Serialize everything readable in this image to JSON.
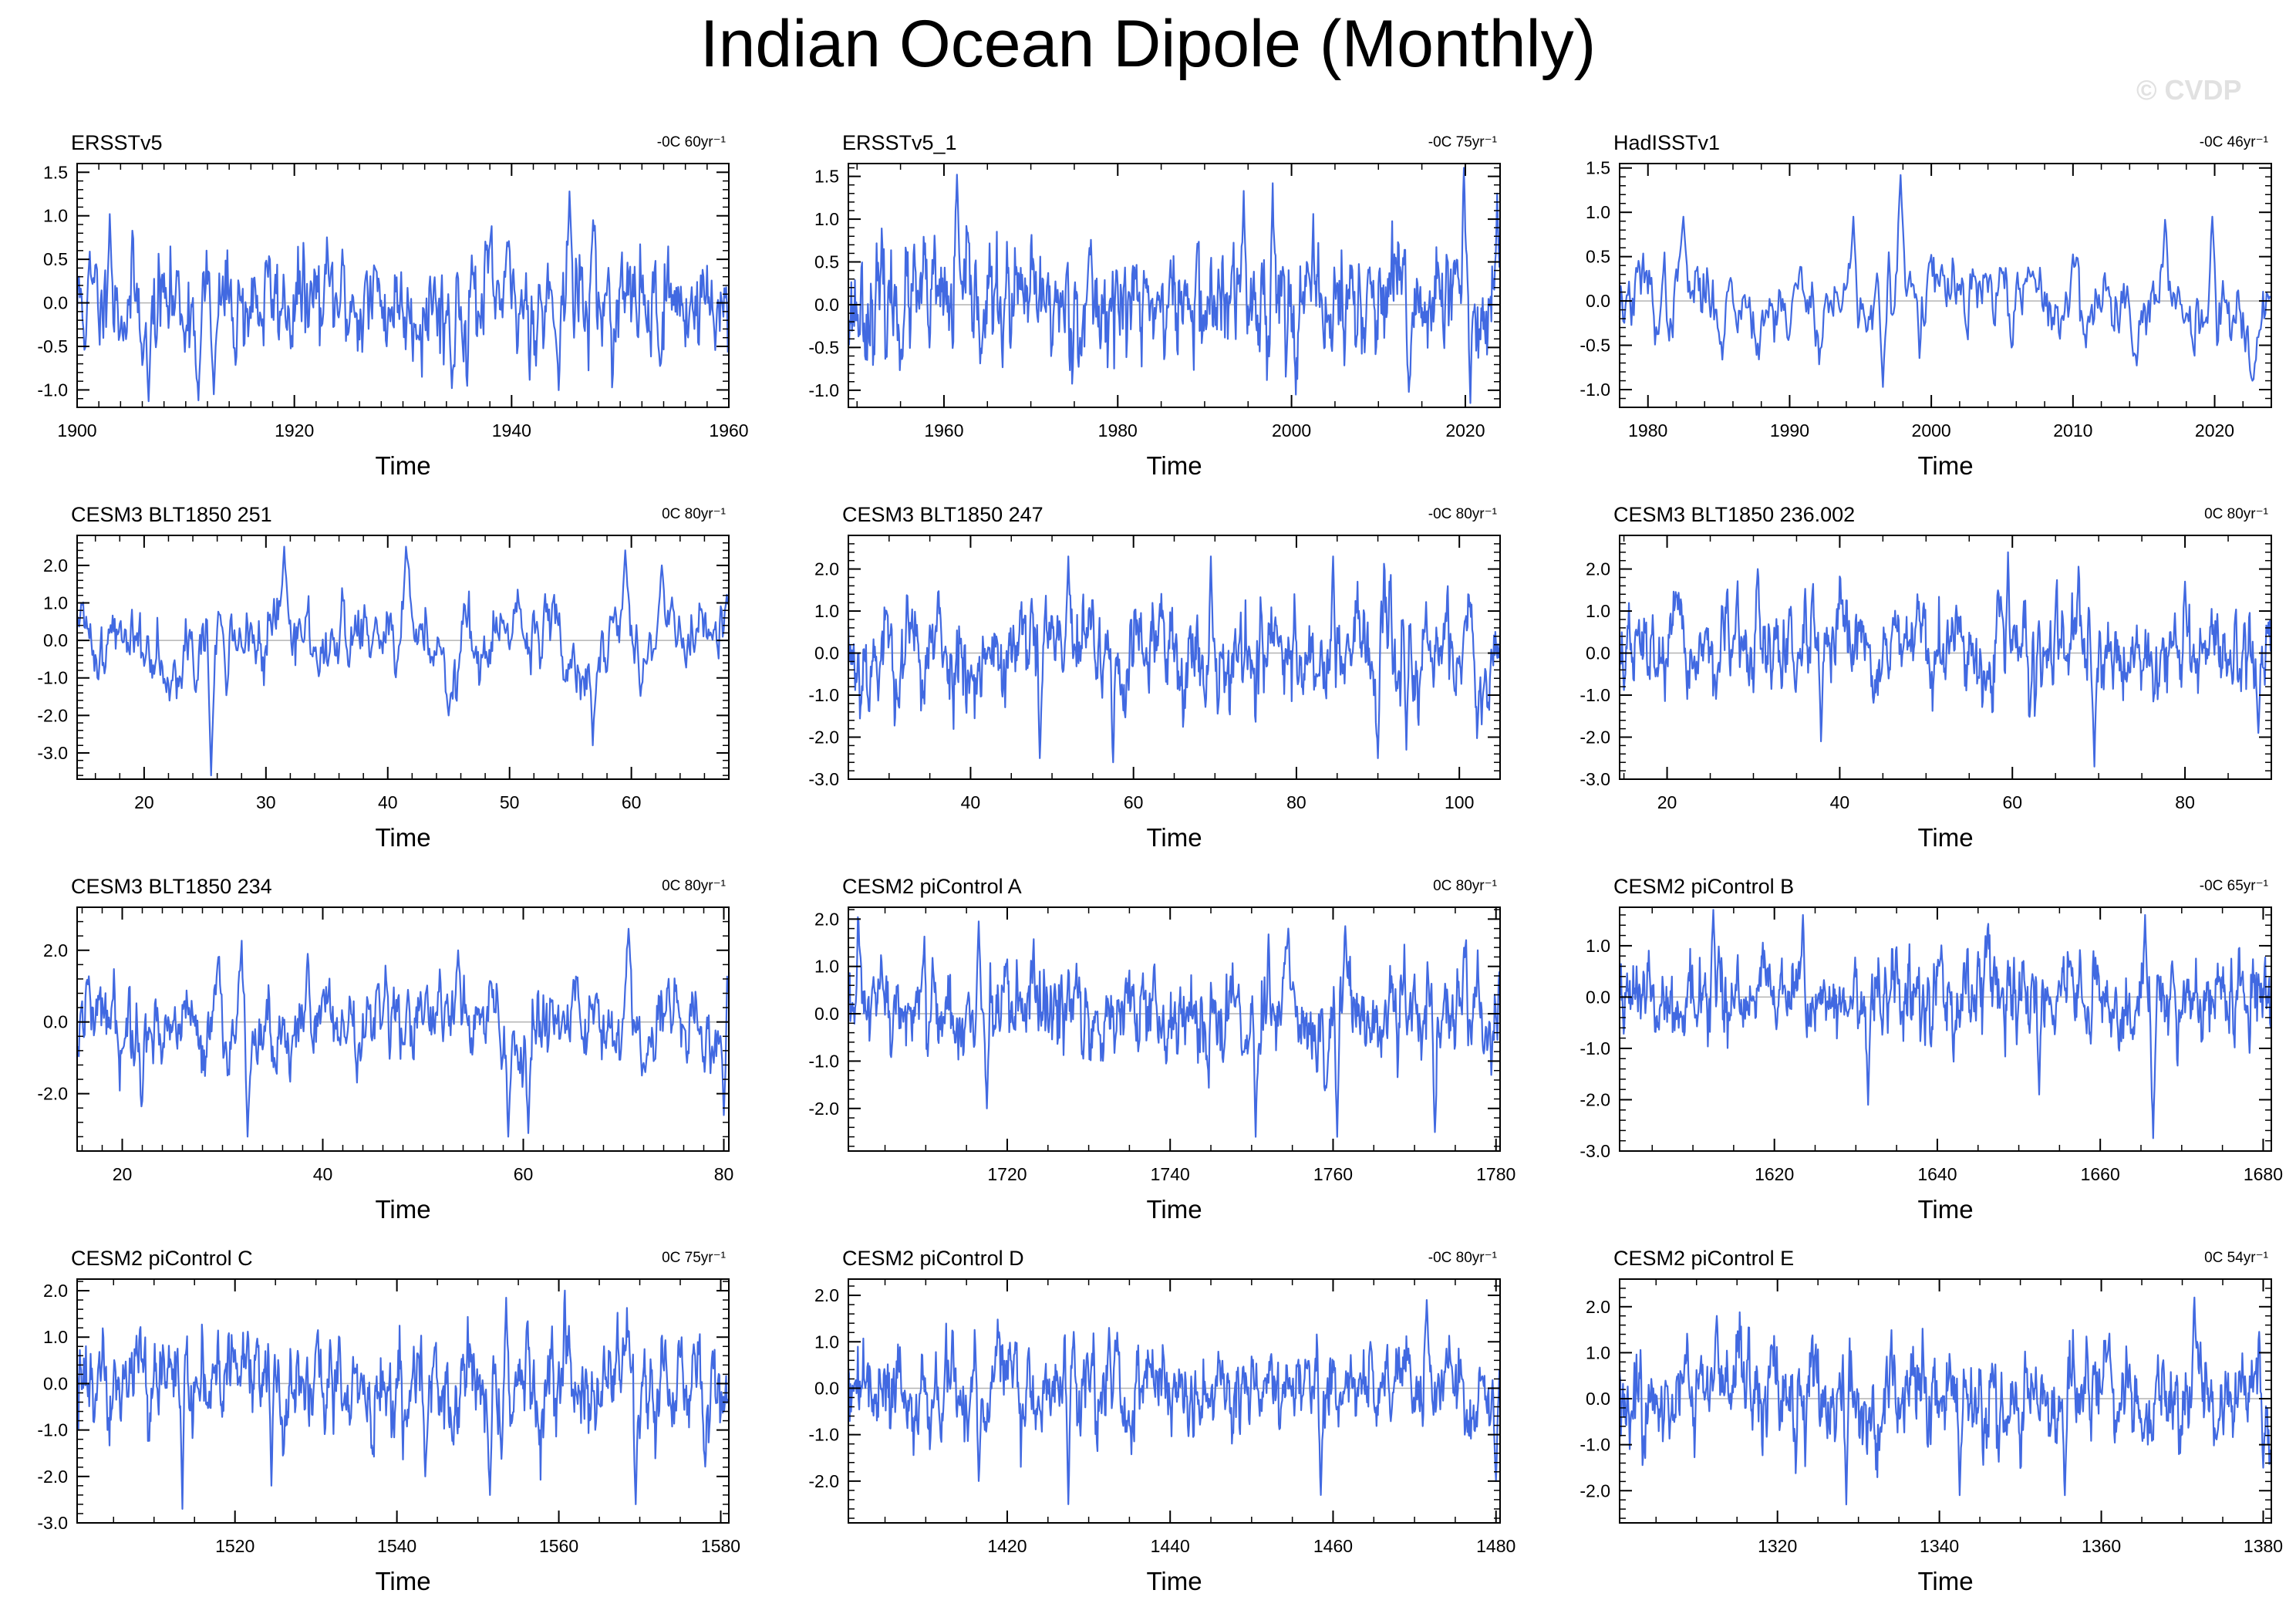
{
  "title": "Indian Ocean Dipole (Monthly)",
  "watermark": "© CVDP",
  "colors": {
    "line": "#4169e1",
    "zero": "#b4b4b4",
    "axis": "#000000"
  },
  "chart_data": [
    {
      "type": "line",
      "title": "ERSSTv5",
      "units": "-0C 60yr⁻¹",
      "xlabel": "Time",
      "xlim": [
        1900,
        1960
      ],
      "ylim": [
        -1.2,
        1.6
      ],
      "xticks": [
        1900,
        1920,
        1940,
        1960
      ],
      "yticks": [
        -1.0,
        -0.5,
        0.0,
        0.5,
        1.0,
        1.5
      ],
      "ydec": 1,
      "series_stats": {
        "amp": 0.33,
        "persistence": 0.6,
        "seed": 11
      },
      "extremes": [
        [
          1906.6,
          -1.13
        ],
        [
          1911.2,
          -1.12
        ],
        [
          1912.6,
          -1.05
        ],
        [
          1945.3,
          1.28
        ],
        [
          1934.5,
          -0.98
        ],
        [
          1903.0,
          1.02
        ],
        [
          1947.5,
          0.95
        ]
      ]
    },
    {
      "type": "line",
      "title": "ERSSTv5_1",
      "units": "-0C 75yr⁻¹",
      "xlabel": "Time",
      "xlim": [
        1949,
        2024
      ],
      "ylim": [
        -1.2,
        1.65
      ],
      "xticks": [
        1960,
        1980,
        2000,
        2020
      ],
      "yticks": [
        -1.0,
        -0.5,
        0.0,
        0.5,
        1.0,
        1.5
      ],
      "ydec": 1,
      "series_stats": {
        "amp": 0.34,
        "persistence": 0.6,
        "seed": 23
      },
      "extremes": [
        [
          1961.5,
          1.52
        ],
        [
          1994.5,
          1.33
        ],
        [
          1997.8,
          1.42
        ],
        [
          2019.8,
          1.6
        ],
        [
          2020.6,
          -1.15
        ],
        [
          2013.5,
          -1.02
        ],
        [
          2023.7,
          1.3
        ]
      ]
    },
    {
      "type": "line",
      "title": "HadISSTv1",
      "units": "-0C 46yr⁻¹",
      "xlabel": "Time",
      "xlim": [
        1978,
        2024
      ],
      "ylim": [
        -1.2,
        1.55
      ],
      "xticks": [
        1980,
        1990,
        2000,
        2010,
        2020
      ],
      "yticks": [
        -1.0,
        -0.5,
        0.0,
        0.5,
        1.0,
        1.5
      ],
      "ydec": 1,
      "series_stats": {
        "amp": 0.28,
        "persistence": 0.8,
        "seed": 37
      },
      "extremes": [
        [
          1997.8,
          1.42
        ],
        [
          1996.6,
          -0.97
        ],
        [
          1994.5,
          0.95
        ],
        [
          1982.5,
          0.95
        ],
        [
          2019.8,
          0.95
        ],
        [
          2022.7,
          -0.9
        ]
      ]
    },
    {
      "type": "line",
      "title": "CESM3 BLT1850 251",
      "units": "0C 80yr⁻¹",
      "xlabel": "Time",
      "xlim": [
        14.5,
        68
      ],
      "ylim": [
        -3.7,
        2.8
      ],
      "xticks": [
        20,
        30,
        40,
        50,
        60
      ],
      "yticks": [
        -3.0,
        -2.0,
        -1.0,
        0.0,
        1.0,
        2.0
      ],
      "ydec": 1,
      "series_stats": {
        "amp": 0.6,
        "persistence": 0.75,
        "seed": 41
      },
      "extremes": [
        [
          25.5,
          -3.6
        ],
        [
          31.5,
          2.5
        ],
        [
          41.5,
          2.5
        ],
        [
          56.8,
          -2.8
        ],
        [
          59.5,
          2.4
        ],
        [
          45.0,
          -2.0
        ],
        [
          62.5,
          2.0
        ]
      ]
    },
    {
      "type": "line",
      "title": "CESM3 BLT1850 247",
      "units": "-0C 80yr⁻¹",
      "xlabel": "Time",
      "xlim": [
        25,
        105
      ],
      "ylim": [
        -3.0,
        2.8
      ],
      "xticks": [
        40,
        60,
        80,
        100
      ],
      "yticks": [
        -3.0,
        -2.0,
        -1.0,
        0.0,
        1.0,
        2.0
      ],
      "ydec": 1,
      "series_stats": {
        "amp": 0.7,
        "persistence": 0.75,
        "seed": 53
      },
      "extremes": [
        [
          48.5,
          -2.5
        ],
        [
          57.5,
          -2.6
        ],
        [
          52.0,
          2.3
        ],
        [
          69.5,
          2.3
        ],
        [
          84.5,
          2.3
        ],
        [
          90.0,
          -2.5
        ],
        [
          93.5,
          -2.3
        ]
      ]
    },
    {
      "type": "line",
      "title": "CESM3 BLT1850 236.002",
      "units": "0C 80yr⁻¹",
      "xlabel": "Time",
      "xlim": [
        14.5,
        90
      ],
      "ylim": [
        -3.0,
        2.8
      ],
      "xticks": [
        20,
        40,
        60,
        80
      ],
      "yticks": [
        -3.0,
        -2.0,
        -1.0,
        0.0,
        1.0,
        2.0
      ],
      "ydec": 1,
      "series_stats": {
        "amp": 0.55,
        "persistence": 0.7,
        "seed": 67
      },
      "extremes": [
        [
          69.5,
          -2.7
        ],
        [
          59.5,
          2.4
        ],
        [
          37.8,
          -2.1
        ],
        [
          88.5,
          -1.9
        ],
        [
          30.5,
          2.0
        ],
        [
          80.0,
          1.7
        ]
      ]
    },
    {
      "type": "line",
      "title": "CESM3 BLT1850 234",
      "units": "0C 80yr⁻¹",
      "xlabel": "Time",
      "xlim": [
        15.5,
        80.5
      ],
      "ylim": [
        -3.6,
        3.2
      ],
      "xticks": [
        20,
        40,
        60,
        80
      ],
      "yticks": [
        -2.0,
        0.0,
        2.0
      ],
      "ydec": 1,
      "series_stats": {
        "amp": 0.7,
        "persistence": 0.75,
        "seed": 79
      },
      "extremes": [
        [
          32.5,
          -3.2
        ],
        [
          58.5,
          -3.2
        ],
        [
          60.5,
          -3.1
        ],
        [
          70.5,
          2.6
        ],
        [
          80.0,
          -2.6
        ],
        [
          53.5,
          2.0
        ],
        [
          38.5,
          1.9
        ]
      ]
    },
    {
      "type": "line",
      "title": "CESM2 piControl A",
      "units": "0C 80yr⁻¹",
      "xlabel": "Time",
      "xlim": [
        1700.5,
        1780.5
      ],
      "ylim": [
        -2.9,
        2.25
      ],
      "xticks": [
        1720,
        1740,
        1760,
        1780
      ],
      "yticks": [
        -2.0,
        -1.0,
        0.0,
        1.0,
        2.0
      ],
      "ydec": 1,
      "series_stats": {
        "amp": 0.55,
        "persistence": 0.7,
        "seed": 97
      },
      "extremes": [
        [
          1717.5,
          -2.0
        ],
        [
          1750.5,
          -2.6
        ],
        [
          1760.5,
          -2.6
        ],
        [
          1772.5,
          -2.5
        ],
        [
          1716.5,
          1.95
        ],
        [
          1754.5,
          1.8
        ],
        [
          1761.5,
          1.85
        ]
      ]
    },
    {
      "type": "line",
      "title": "CESM2 piControl B",
      "units": "-0C 65yr⁻¹",
      "xlabel": "Time",
      "xlim": [
        1601,
        1681
      ],
      "ylim": [
        -3.0,
        1.75
      ],
      "xticks": [
        1620,
        1640,
        1660,
        1680
      ],
      "yticks": [
        -3.0,
        -2.0,
        -1.0,
        0.0,
        1.0
      ],
      "ydec": 1,
      "series_stats": {
        "amp": 0.42,
        "persistence": 0.65,
        "seed": 109
      },
      "extremes": [
        [
          1666.5,
          -2.75
        ],
        [
          1665.5,
          1.6
        ],
        [
          1612.5,
          1.7
        ],
        [
          1631.5,
          -2.1
        ],
        [
          1652.5,
          -1.9
        ],
        [
          1623.5,
          1.6
        ]
      ]
    },
    {
      "type": "line",
      "title": "CESM2 piControl C",
      "units": "0C 75yr⁻¹",
      "xlabel": "Time",
      "xlim": [
        1500.5,
        1581
      ],
      "ylim": [
        -3.0,
        2.25
      ],
      "xticks": [
        1520,
        1540,
        1560,
        1580
      ],
      "yticks": [
        -3.0,
        -2.0,
        -1.0,
        0.0,
        1.0,
        2.0
      ],
      "ydec": 1,
      "series_stats": {
        "amp": 0.55,
        "persistence": 0.7,
        "seed": 127
      },
      "extremes": [
        [
          1513.5,
          -2.7
        ],
        [
          1551.5,
          -2.4
        ],
        [
          1569.5,
          -2.6
        ],
        [
          1553.5,
          1.85
        ],
        [
          1524.5,
          -2.2
        ],
        [
          1543.5,
          -2.0
        ]
      ]
    },
    {
      "type": "line",
      "title": "CESM2 piControl D",
      "units": "-0C 80yr⁻¹",
      "xlabel": "Time",
      "xlim": [
        1400.5,
        1480.5
      ],
      "ylim": [
        -2.9,
        2.35
      ],
      "xticks": [
        1420,
        1440,
        1460,
        1480
      ],
      "yticks": [
        -2.0,
        -1.0,
        0.0,
        1.0,
        2.0
      ],
      "ydec": 1,
      "series_stats": {
        "amp": 0.5,
        "persistence": 0.7,
        "seed": 139
      },
      "extremes": [
        [
          1427.5,
          -2.5
        ],
        [
          1458.5,
          -2.3
        ],
        [
          1471.5,
          1.9
        ],
        [
          1416.5,
          -2.0
        ],
        [
          1480.0,
          -2.0
        ],
        [
          1432.5,
          1.3
        ]
      ]
    },
    {
      "type": "line",
      "title": "CESM2 piControl E",
      "units": "0C 54yr⁻¹",
      "xlabel": "Time",
      "xlim": [
        1300.5,
        1381
      ],
      "ylim": [
        -2.7,
        2.6
      ],
      "xticks": [
        1320,
        1340,
        1360,
        1380
      ],
      "yticks": [
        -2.0,
        -1.0,
        0.0,
        1.0,
        2.0
      ],
      "ydec": 1,
      "series_stats": {
        "amp": 0.55,
        "persistence": 0.7,
        "seed": 151
      },
      "extremes": [
        [
          1371.5,
          2.2
        ],
        [
          1328.5,
          -2.3
        ],
        [
          1312.5,
          1.8
        ],
        [
          1342.5,
          -2.1
        ],
        [
          1355.5,
          -2.1
        ],
        [
          1380.0,
          -1.5
        ]
      ]
    }
  ]
}
